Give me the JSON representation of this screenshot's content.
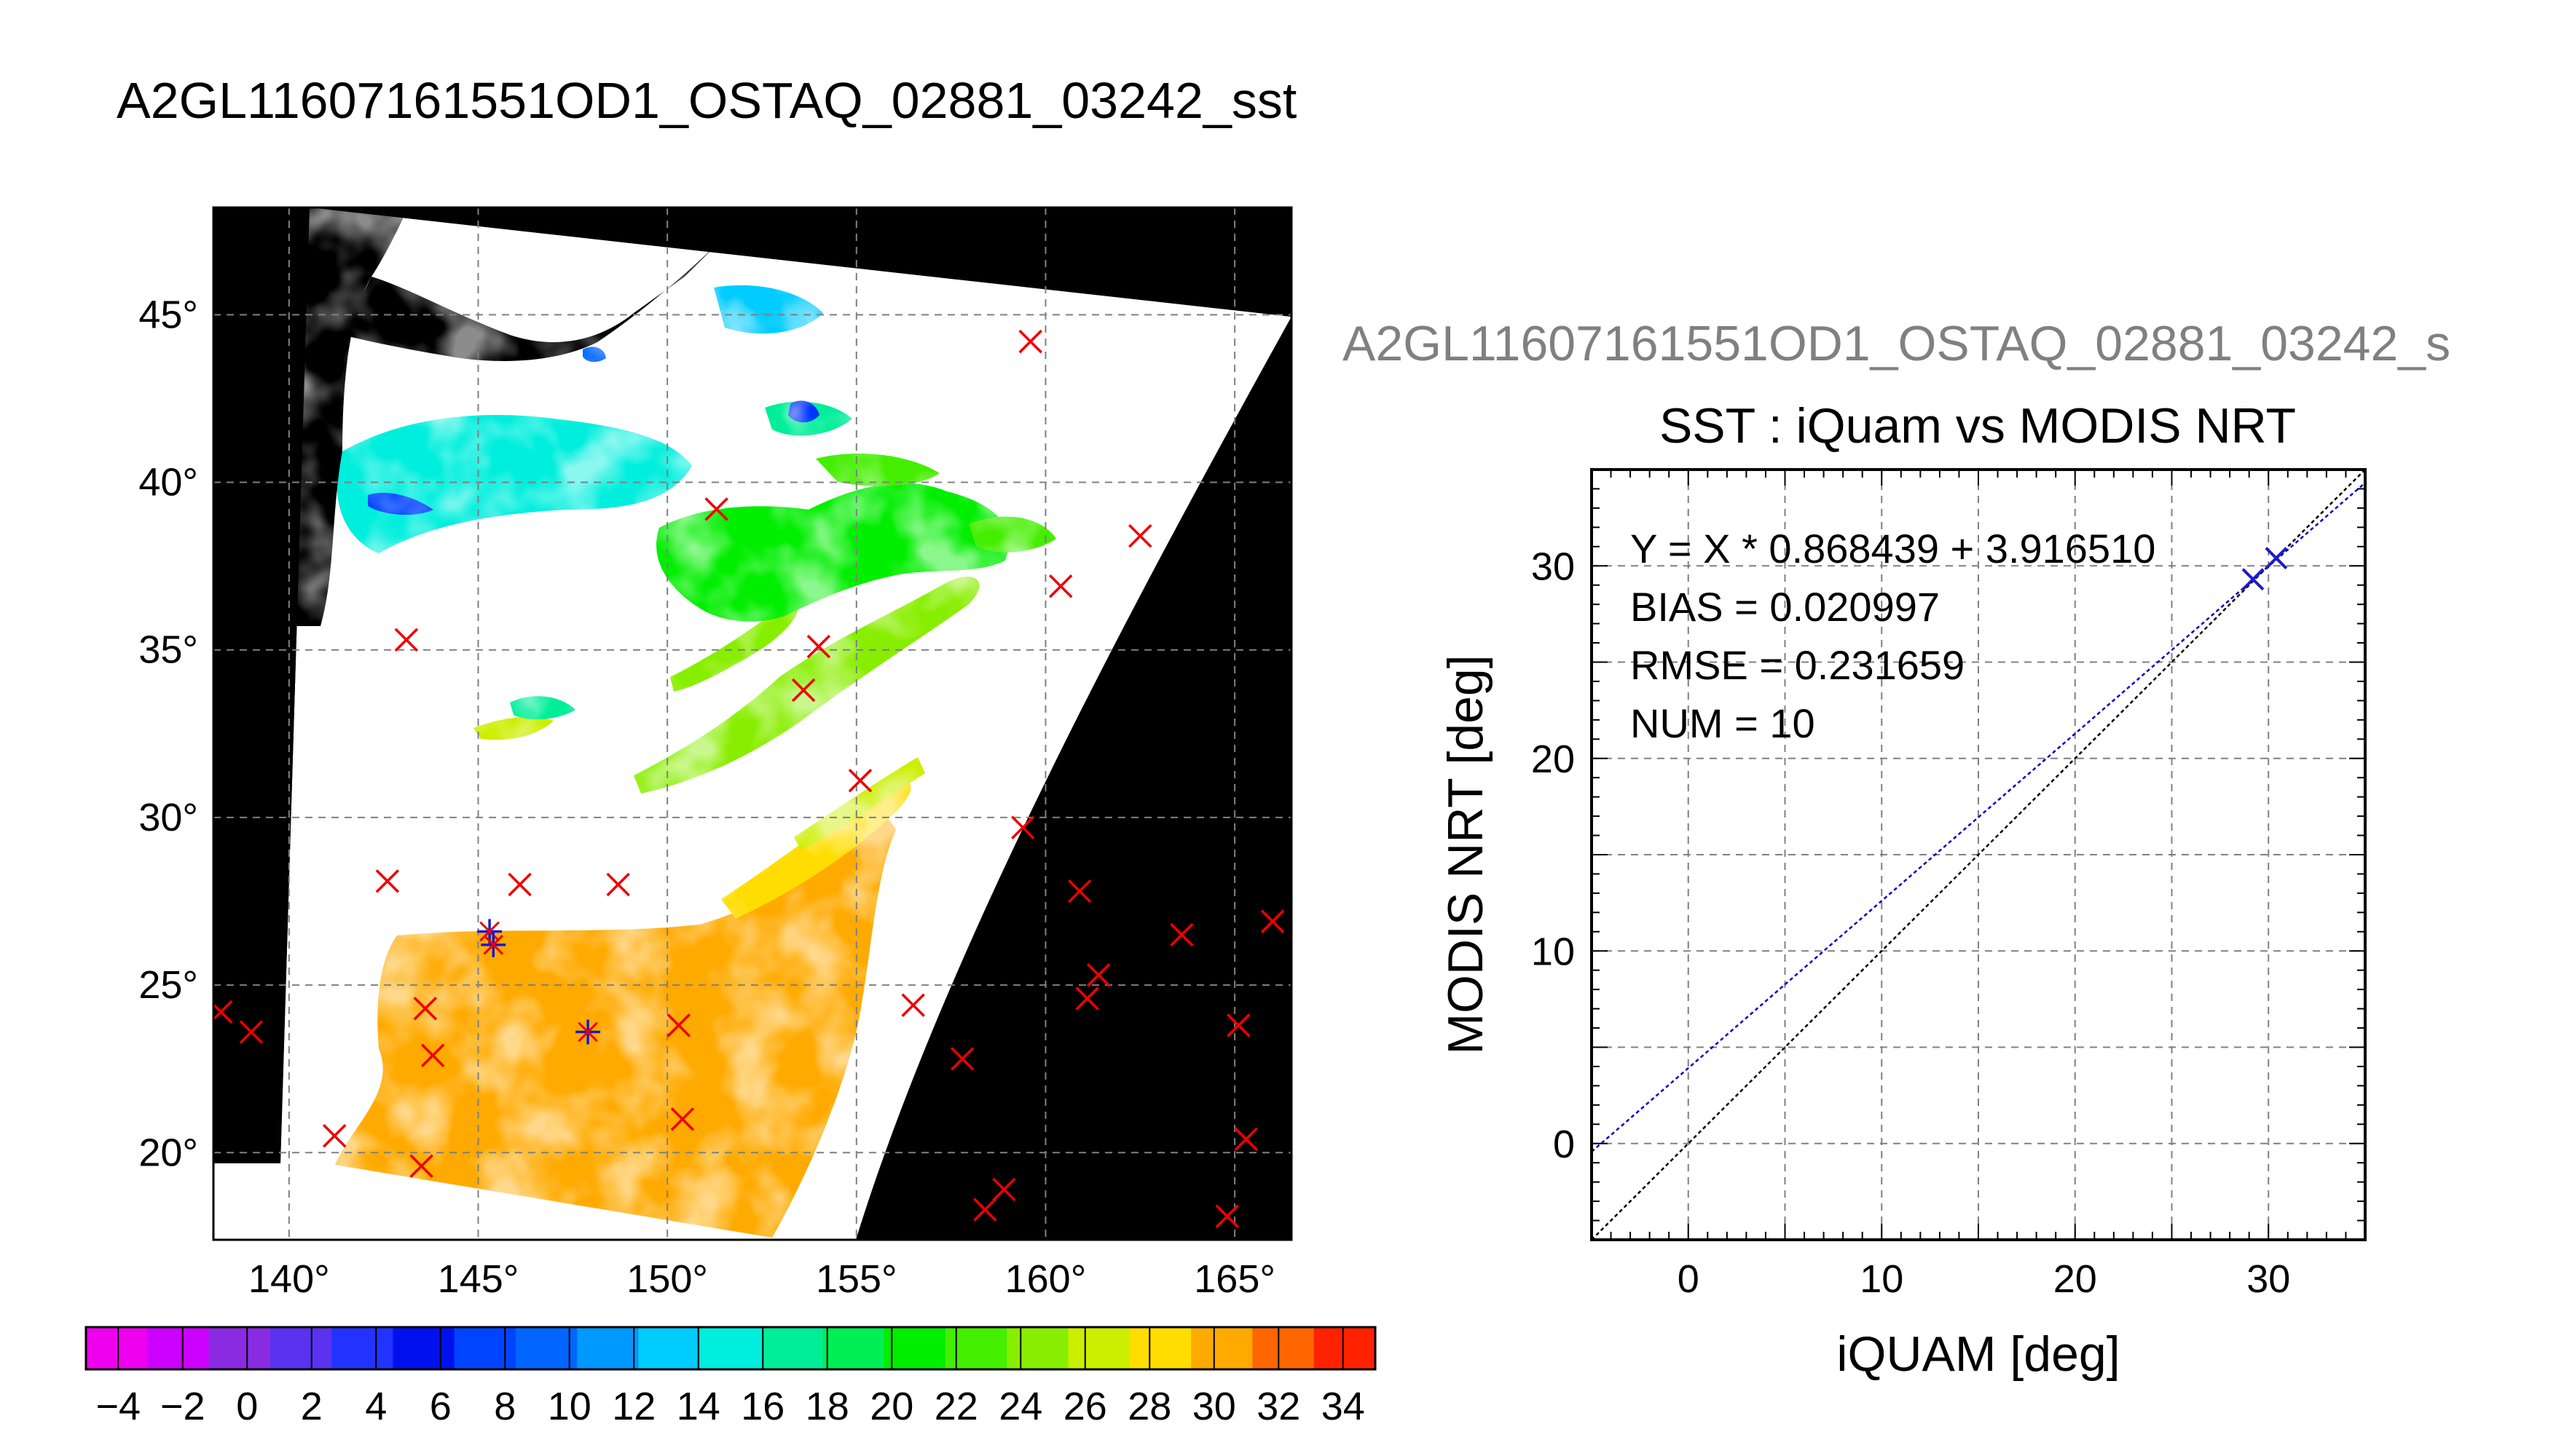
{
  "page_title": "A2GL11607161551OD1_OSTAQ_02881_03242_sst",
  "scatter_title_clipped": "A2GL11607161551OD1_OSTAQ_02881_03242_s",
  "chart_data": [
    {
      "type": "map",
      "title": "A2GL11607161551OD1_OSTAQ_02881_03242_sst",
      "lon_ticks": [
        "140°",
        "145°",
        "150°",
        "155°",
        "160°",
        "165°"
      ],
      "lat_ticks": [
        "20°",
        "25°",
        "30°",
        "35°",
        "40°",
        "45°"
      ],
      "lon_range": [
        138,
        166.5
      ],
      "lat_range": [
        17.4,
        48.2
      ],
      "grid": true,
      "colorbar": {
        "ticks": [
          "-4",
          "-2",
          "0",
          "2",
          "4",
          "6",
          "8",
          "10",
          "12",
          "14",
          "16",
          "18",
          "20",
          "22",
          "24",
          "26",
          "28",
          "30",
          "32",
          "34"
        ],
        "range": [
          -5,
          35
        ],
        "colors": [
          "#ee00ee",
          "#cc00ff",
          "#8a2be2",
          "#5a32f0",
          "#2233ff",
          "#0011ee",
          "#0044ff",
          "#0066ff",
          "#0099ff",
          "#00ccff",
          "#00eedd",
          "#00ee99",
          "#00ee55",
          "#00ee00",
          "#44ee00",
          "#88ee00",
          "#ccee00",
          "#ffdd00",
          "#ffaa00",
          "#ff6600",
          "#ff2200"
        ]
      },
      "points_red": [
        [
          159.6,
          44.2
        ],
        [
          151.3,
          39.2
        ],
        [
          162.5,
          38.4
        ],
        [
          160.4,
          36.9
        ],
        [
          143.1,
          35.3
        ],
        [
          154.0,
          35.1
        ],
        [
          153.6,
          33.8
        ],
        [
          155.1,
          31.1
        ],
        [
          159.4,
          29.7
        ],
        [
          142.6,
          28.1
        ],
        [
          146.1,
          28.0
        ],
        [
          148.7,
          28.0
        ],
        [
          160.9,
          27.8
        ],
        [
          163.6,
          26.5
        ],
        [
          166.0,
          26.9
        ],
        [
          138.2,
          24.2
        ],
        [
          139.0,
          23.6
        ],
        [
          143.6,
          24.3
        ],
        [
          156.5,
          24.4
        ],
        [
          161.4,
          25.3
        ],
        [
          161.1,
          24.6
        ],
        [
          165.1,
          23.8
        ],
        [
          150.3,
          23.8
        ],
        [
          143.8,
          22.9
        ],
        [
          157.8,
          22.8
        ],
        [
          150.4,
          21.0
        ],
        [
          141.2,
          20.5
        ],
        [
          143.5,
          19.6
        ],
        [
          165.3,
          20.4
        ],
        [
          158.9,
          18.9
        ],
        [
          158.4,
          18.3
        ],
        [
          164.8,
          18.1
        ]
      ],
      "points_blue": [
        [
          145.3,
          26.6
        ],
        [
          145.4,
          26.2
        ],
        [
          147.9,
          23.6
        ]
      ]
    },
    {
      "type": "scatter",
      "title": "SST : iQuam vs MODIS NRT",
      "xlabel": "iQUAM [deg]",
      "ylabel": "MODIS NRT [deg]",
      "xlim": [
        -5,
        35
      ],
      "ylim": [
        -5,
        35
      ],
      "xticks": [
        "0",
        "10",
        "20",
        "30"
      ],
      "yticks": [
        "0",
        "10",
        "20",
        "30"
      ],
      "grid": true,
      "stats": [
        "Y = X * 0.868439 + 3.916510",
        "BIAS = 0.020997",
        "RMSE = 0.231659",
        "NUM = 10"
      ],
      "fit": {
        "slope": 0.868439,
        "intercept": 3.91651,
        "color": "#0000cc"
      },
      "identity_color": "#000000",
      "points": [
        [
          29.2,
          29.3
        ],
        [
          30.4,
          30.4
        ]
      ]
    }
  ]
}
